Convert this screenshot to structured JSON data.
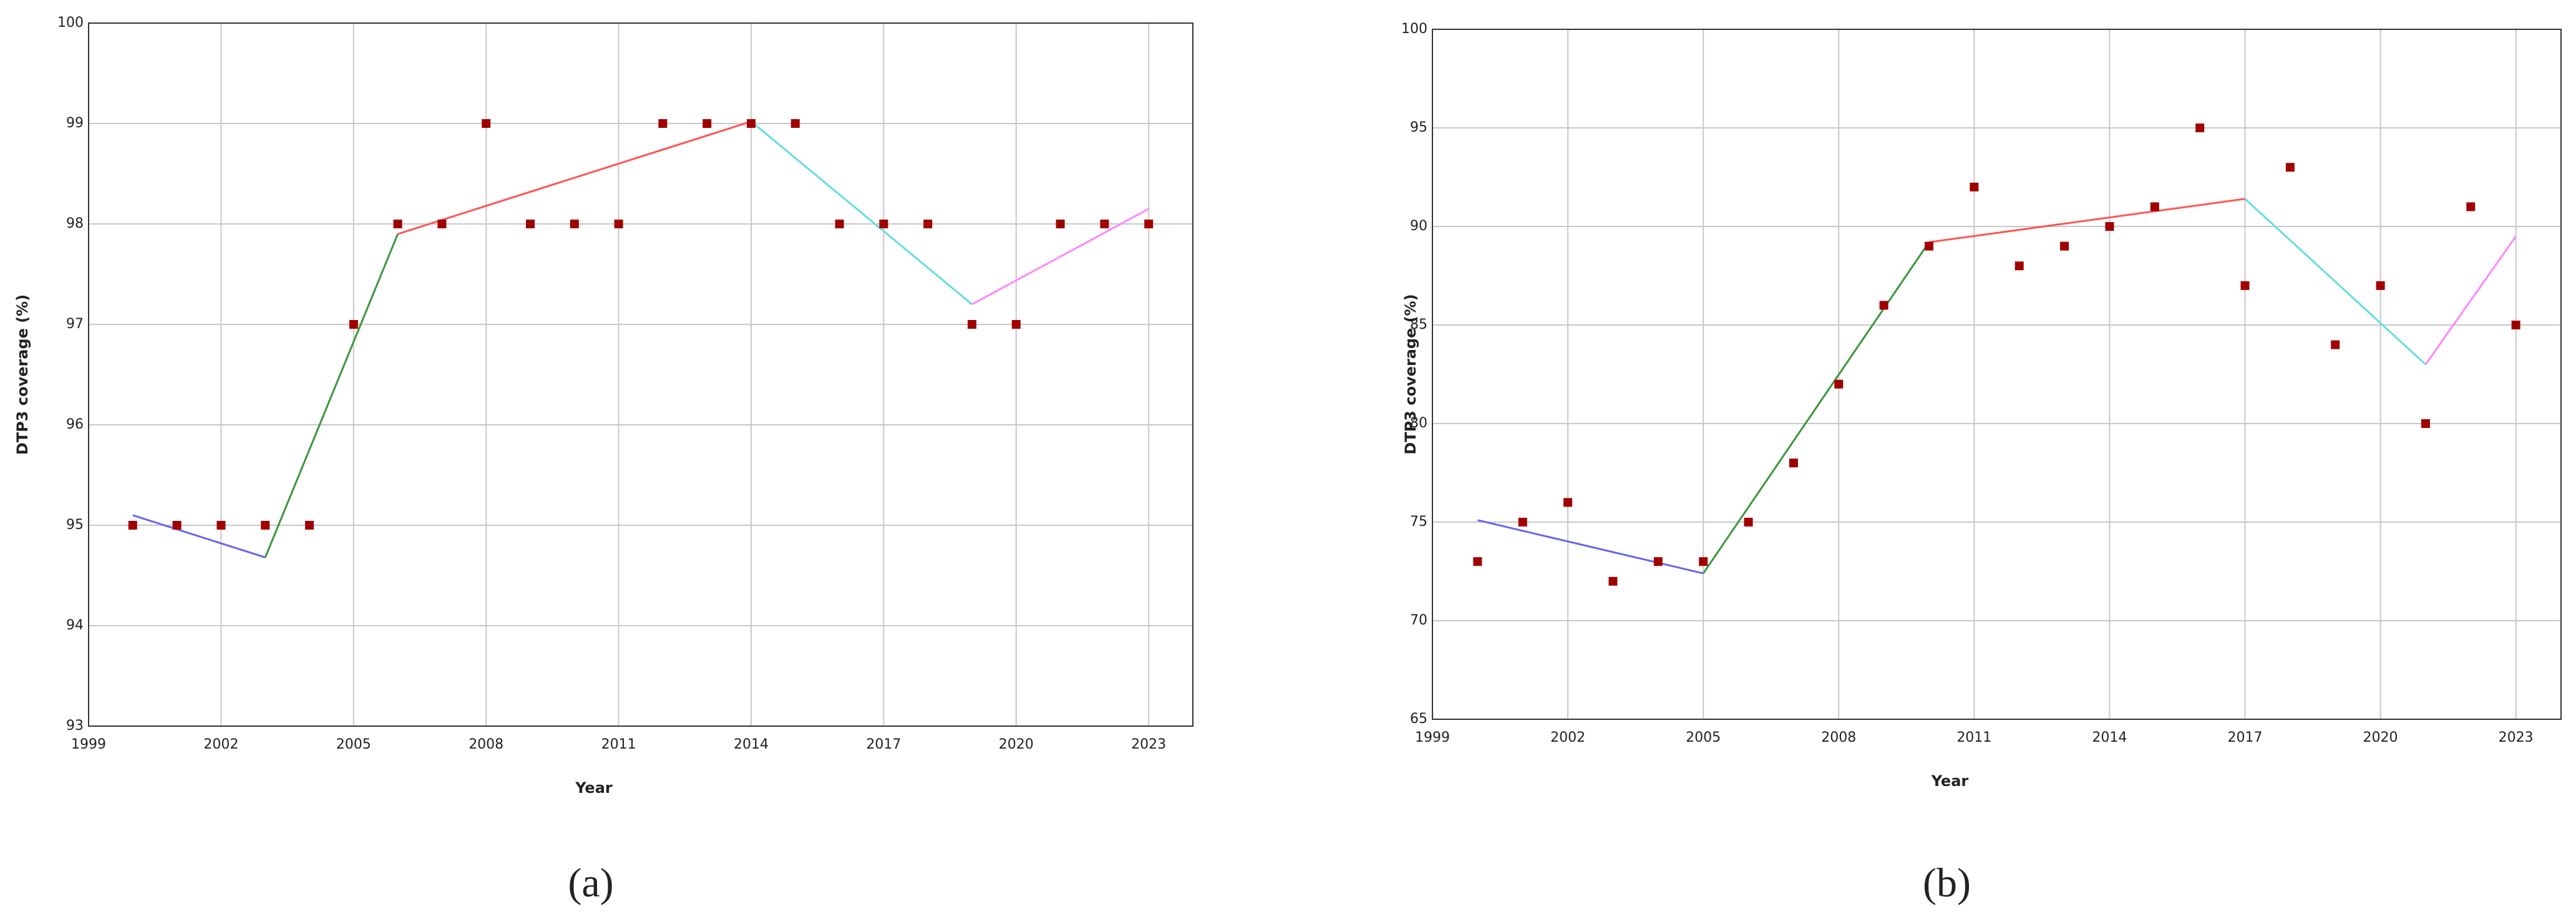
{
  "chart_data": [
    {
      "type": "scatter",
      "caption": "(a)",
      "x_label": "Year",
      "y_label": "DTP3 coverage (%)",
      "x": [
        2000,
        2001,
        2002,
        2003,
        2004,
        2005,
        2006,
        2007,
        2008,
        2009,
        2010,
        2011,
        2012,
        2013,
        2014,
        2015,
        2016,
        2017,
        2018,
        2019,
        2020,
        2021,
        2022,
        2023
      ],
      "values": [
        95,
        95,
        95,
        95,
        95,
        97,
        98,
        98,
        99,
        98,
        98,
        98,
        99,
        99,
        99,
        99,
        98,
        98,
        98,
        97,
        97,
        98,
        98,
        98
      ],
      "color": "#a00000",
      "segments": [
        {
          "color": "#6666ee",
          "x": [
            2000,
            2003
          ],
          "values": [
            95.1,
            94.68
          ]
        },
        {
          "color": "#3c963c",
          "x": [
            2003,
            2006
          ],
          "values": [
            94.68,
            97.9
          ]
        },
        {
          "color": "#ff5555",
          "x": [
            2006,
            2014
          ],
          "values": [
            97.9,
            99.02
          ]
        },
        {
          "color": "#66dddd",
          "x": [
            2014,
            2019
          ],
          "values": [
            99.02,
            97.2
          ]
        },
        {
          "color": "#ff88ff",
          "x": [
            2019,
            2023
          ],
          "values": [
            97.2,
            98.15
          ]
        }
      ],
      "xlim": [
        1999,
        2024
      ],
      "xticks": [
        1999,
        2002,
        2005,
        2008,
        2011,
        2014,
        2017,
        2020,
        2023
      ],
      "ylim": [
        93,
        100
      ],
      "yticks": [
        93,
        94,
        95,
        96,
        97,
        98,
        99,
        100
      ],
      "grid": true
    },
    {
      "type": "scatter",
      "caption": "(b)",
      "x_label": "Year",
      "y_label": "DTP3 coverage (%)",
      "x": [
        2000,
        2001,
        2002,
        2003,
        2004,
        2005,
        2006,
        2007,
        2008,
        2009,
        2010,
        2011,
        2012,
        2013,
        2014,
        2015,
        2016,
        2017,
        2018,
        2019,
        2020,
        2021,
        2022,
        2023
      ],
      "values": [
        73,
        75,
        76,
        72,
        73,
        73,
        75,
        78,
        82,
        86,
        89,
        92,
        88,
        89,
        90,
        91,
        95,
        87,
        93,
        84,
        87,
        80,
        91,
        85
      ],
      "color": "#a00000",
      "segments": [
        {
          "color": "#6666ee",
          "x": [
            2000,
            2005
          ],
          "values": [
            75.1,
            72.4
          ]
        },
        {
          "color": "#3c963c",
          "x": [
            2005,
            2010
          ],
          "values": [
            72.4,
            89.2
          ]
        },
        {
          "color": "#ff5555",
          "x": [
            2010,
            2017
          ],
          "values": [
            89.2,
            91.4
          ]
        },
        {
          "color": "#66dddd",
          "x": [
            2017,
            2021
          ],
          "values": [
            91.4,
            83
          ]
        },
        {
          "color": "#ff88ff",
          "x": [
            2021,
            2023
          ],
          "values": [
            83,
            89.5
          ]
        }
      ],
      "xlim": [
        1999,
        2024
      ],
      "xticks": [
        1999,
        2002,
        2005,
        2008,
        2011,
        2014,
        2017,
        2020,
        2023
      ],
      "ylim": [
        65,
        100
      ],
      "yticks": [
        65,
        70,
        75,
        80,
        85,
        90,
        95,
        100
      ],
      "grid": true
    }
  ]
}
